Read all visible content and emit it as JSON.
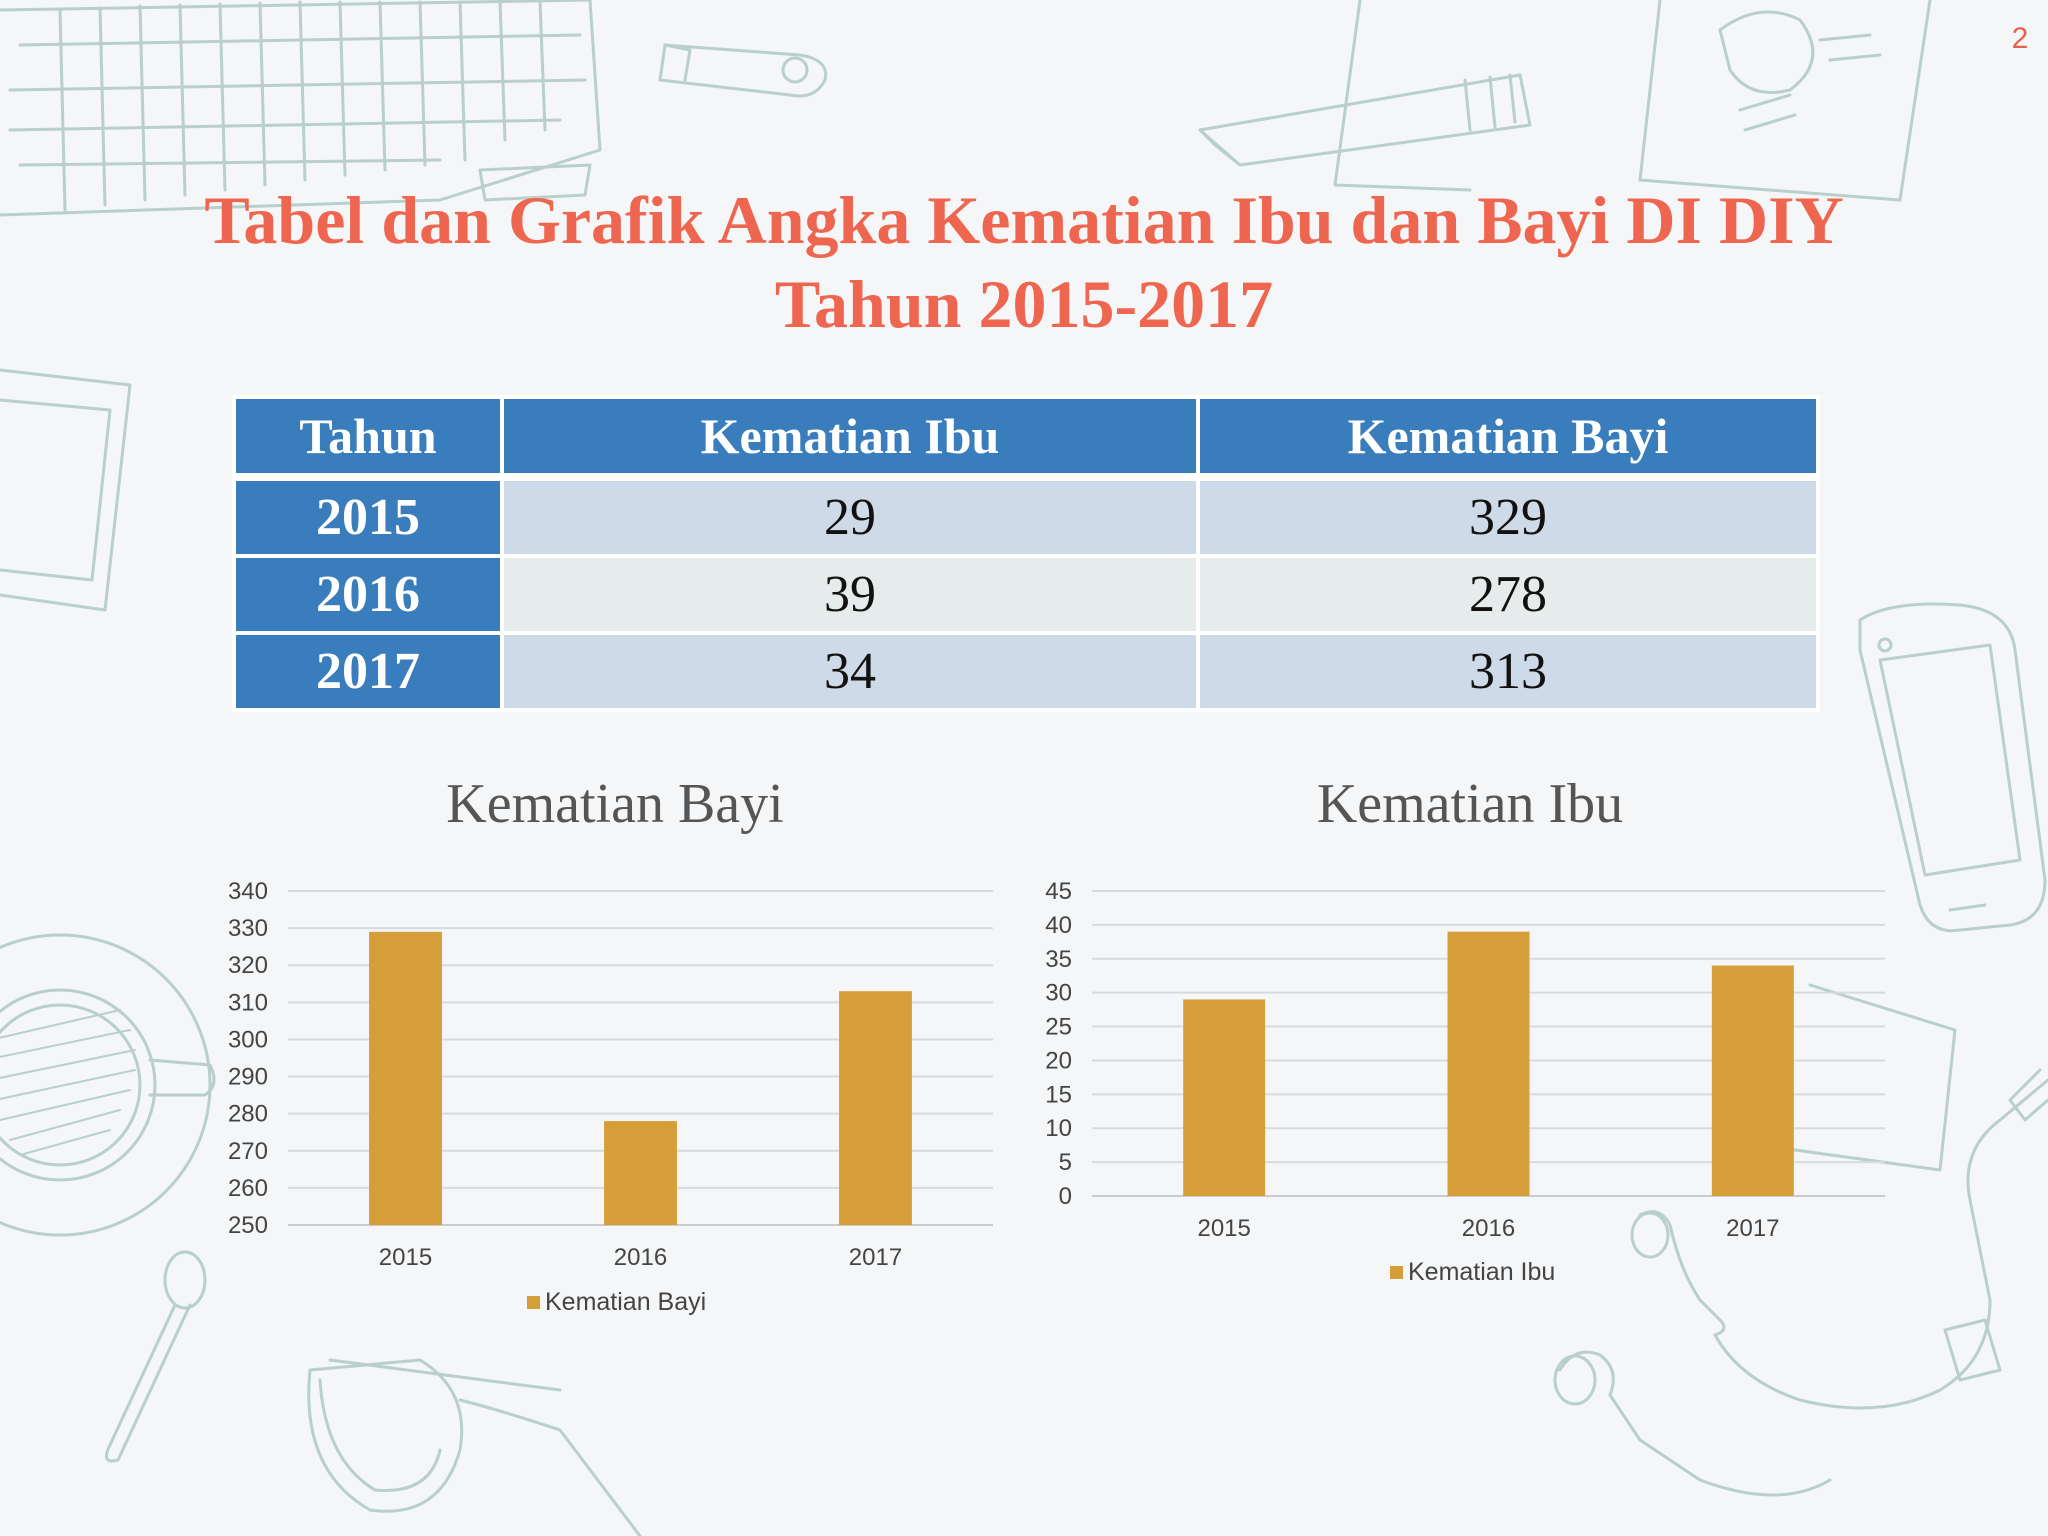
{
  "page": {
    "number": "2",
    "title_line1": "Tabel dan Grafik Angka Kematian Ibu dan Bayi DI DIY",
    "title_line2": "Tahun 2015-2017"
  },
  "colors": {
    "title": "#ee6650",
    "table_header": "#3a7dbc",
    "row_odd": "#cfdae8",
    "row_even": "#e6eceb",
    "bar": "#d69e38",
    "sketch": "#b9cfcc"
  },
  "table": {
    "headers": [
      "Tahun",
      "Kematian Ibu",
      "Kematian Bayi"
    ],
    "rows": [
      {
        "year": "2015",
        "ibu": "29",
        "bayi": "329"
      },
      {
        "year": "2016",
        "ibu": "39",
        "bayi": "278"
      },
      {
        "year": "2017",
        "ibu": "34",
        "bayi": "313"
      }
    ]
  },
  "chart_data": [
    {
      "type": "bar",
      "title": "Kematian Bayi",
      "categories": [
        "2015",
        "2016",
        "2017"
      ],
      "series": [
        {
          "name": "Kematian Bayi",
          "values": [
            329,
            278,
            313
          ]
        }
      ],
      "ylim": [
        250,
        340
      ],
      "yticks": [
        "250",
        "260",
        "270",
        "280",
        "290",
        "300",
        "310",
        "320",
        "330",
        "340"
      ],
      "grid": true,
      "legend": "bottom"
    },
    {
      "type": "bar",
      "title": "Kematian Ibu",
      "categories": [
        "2015",
        "2016",
        "2017"
      ],
      "series": [
        {
          "name": "Kematian Ibu",
          "values": [
            29,
            39,
            34
          ]
        }
      ],
      "ylim": [
        0,
        45
      ],
      "yticks": [
        "0",
        "5",
        "10",
        "15",
        "20",
        "25",
        "30",
        "35",
        "40",
        "45"
      ],
      "grid": true,
      "legend": "bottom"
    }
  ]
}
